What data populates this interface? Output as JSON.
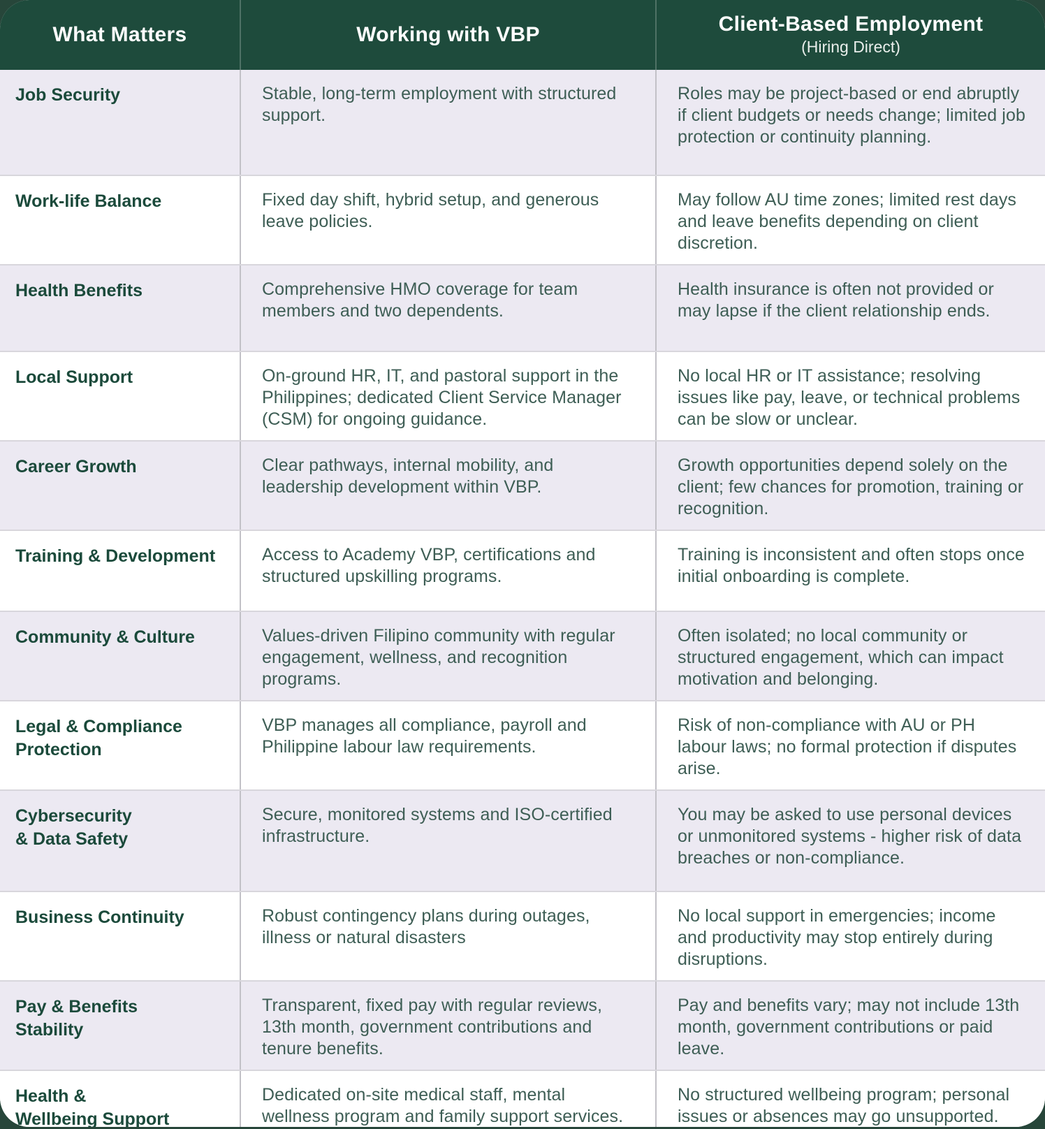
{
  "header": {
    "col1": "What Matters",
    "col2": "Working with VBP",
    "col3_title": "Client-Based Employment",
    "col3_subtitle": "(Hiring Direct)"
  },
  "colors": {
    "page_bg": "#27463A",
    "header_bg": "#1E4B3C",
    "header_text": "#FFFFFF",
    "row_bg": "#FFFFFF",
    "row_alt_bg": "#ECE9F2",
    "label_text": "#1B4A3B",
    "cell_text": "#3E5E55"
  },
  "rows": [
    {
      "label": "Job Security",
      "vbp": "Stable, long-term employment with structured support.",
      "client": "Roles may be project-based or end abruptly if client budgets or needs change; limited job protection or continuity planning."
    },
    {
      "label": "Work-life Balance",
      "vbp": "Fixed day shift, hybrid setup, and generous leave policies.",
      "client": "May follow AU time zones; limited rest days and leave benefits depending on client discretion."
    },
    {
      "label": "Health Benefits",
      "vbp": "Comprehensive HMO coverage for team members and two dependents.",
      "client": "Health insurance is often not provided or may lapse if the client relationship ends."
    },
    {
      "label": "Local Support",
      "vbp": "On-ground HR, IT, and pastoral support in the Philippines; dedicated Client Service Manager (CSM) for ongoing guidance.",
      "client": "No local HR or IT assistance; resolving issues like pay, leave, or technical problems can be slow or unclear."
    },
    {
      "label": "Career Growth",
      "vbp": "Clear pathways, internal mobility, and leadership development within VBP.",
      "client": "Growth opportunities depend solely on the client; few chances for promotion, training or recognition."
    },
    {
      "label": "Training & Development",
      "vbp": "Access to Academy VBP, certifications and structured upskilling programs.",
      "client": "Training is inconsistent and often stops once initial onboarding is complete."
    },
    {
      "label": "Community & Culture",
      "vbp": "Values-driven Filipino community with regular engagement, wellness, and recognition programs.",
      "client": "Often isolated; no local community or structured engagement, which can impact motivation and belonging."
    },
    {
      "label": "Legal & Compliance\nProtection",
      "vbp": "VBP manages all compliance, payroll and Philippine labour law requirements.",
      "client": "Risk of non-compliance with AU or PH labour laws; no formal protection if disputes arise."
    },
    {
      "label": "Cybersecurity\n& Data Safety",
      "vbp": "Secure, monitored systems and ISO-certified infrastructure.",
      "client": "You may be asked to use personal devices or unmonitored systems - higher risk of data breaches or non-compliance."
    },
    {
      "label": "Business Continuity",
      "vbp": "Robust contingency plans during outages, illness or natural disasters",
      "client": "No local support in emergencies; income and productivity may stop entirely during disruptions."
    },
    {
      "label": "Pay & Benefits\nStability",
      "vbp": "Transparent, fixed pay with regular reviews, 13th month, government contributions and tenure benefits.",
      "client": "Pay and benefits vary; may not include 13th month, government contributions or paid leave."
    },
    {
      "label": "Health &\nWellbeing Support",
      "vbp": "Dedicated on-site medical staff, mental wellness program and family support services.",
      "client": "No structured wellbeing program; personal issues or absences may go unsupported."
    }
  ]
}
